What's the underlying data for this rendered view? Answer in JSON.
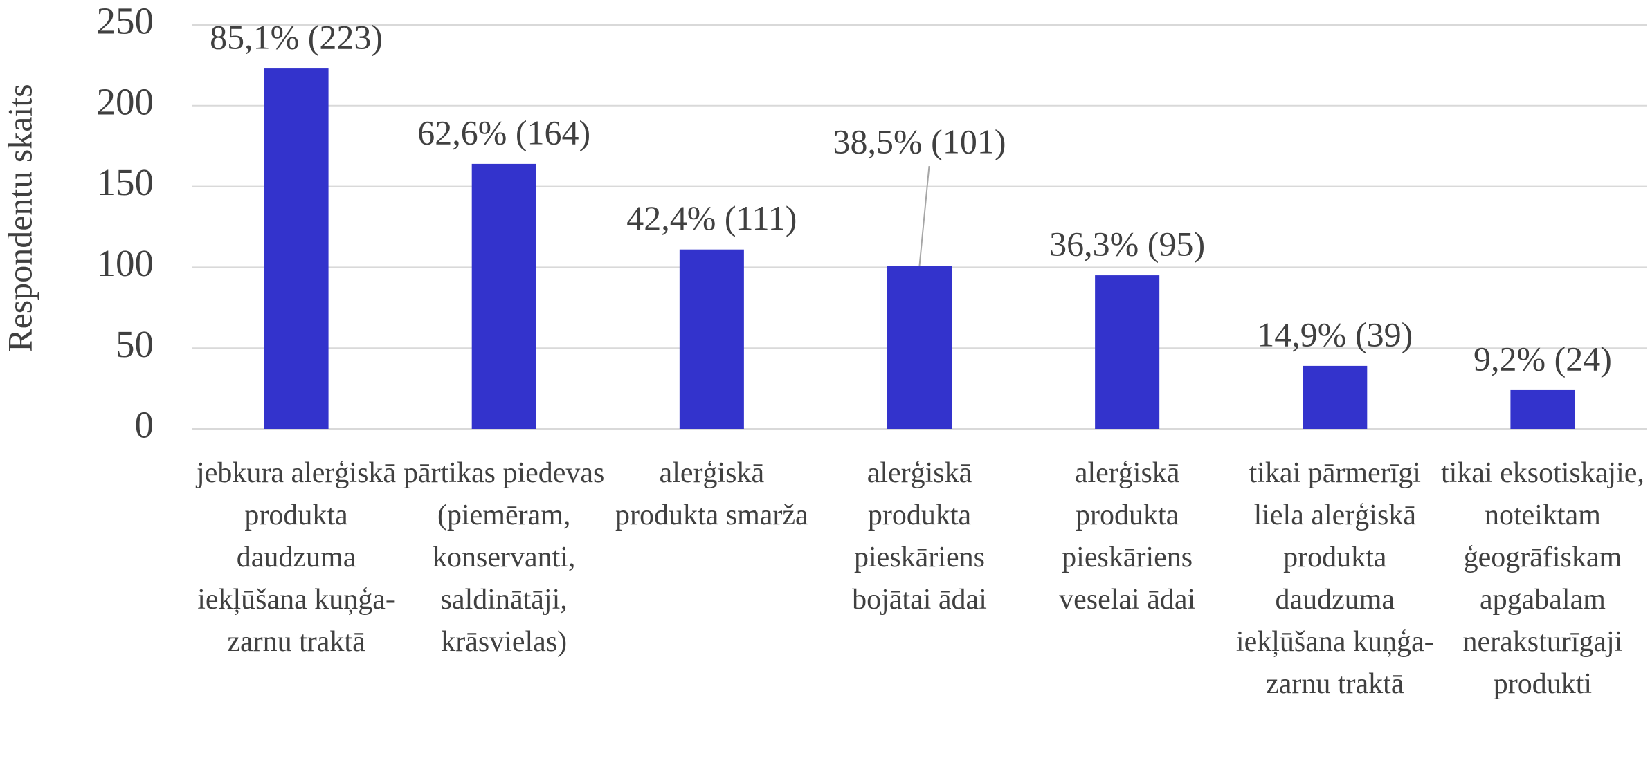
{
  "chart_data": {
    "type": "bar",
    "y_label": "Respondentu skaits",
    "categories": [
      "jebkura alerģiskā produkta daudzuma iekļūšana kuņģa-zarnu traktā",
      "pārtikas piedevas (piemēram, konservanti, saldinātāji, krāsvielas)",
      "alerģiskā produkta smarža",
      "alerģiskā produkta pieskāriens bojātai ādai",
      "alerģiskā produkta pieskāriens veselai ādai",
      "tikai pārmerīgi liela alerģiskā produkta daudzuma iekļūšana kuņģa-zarnu traktā",
      "tikai eksotiskajie, noteiktam ģeogrāfiskam apgabalam neraksturīgaji produkti"
    ],
    "values": [
      223,
      164,
      111,
      101,
      95,
      39,
      24
    ],
    "value_labels": [
      "85,1% (223)",
      "62,6% (164)",
      "42,4% (111)",
      "38,5% (101)",
      "36,3% (95)",
      "14,9% (39)",
      "9,2% (24)"
    ],
    "color": "#3333cc",
    "ylim": [
      0,
      250
    ],
    "yticks": [
      0,
      50,
      100,
      150,
      200,
      250
    ],
    "grid": true
  }
}
